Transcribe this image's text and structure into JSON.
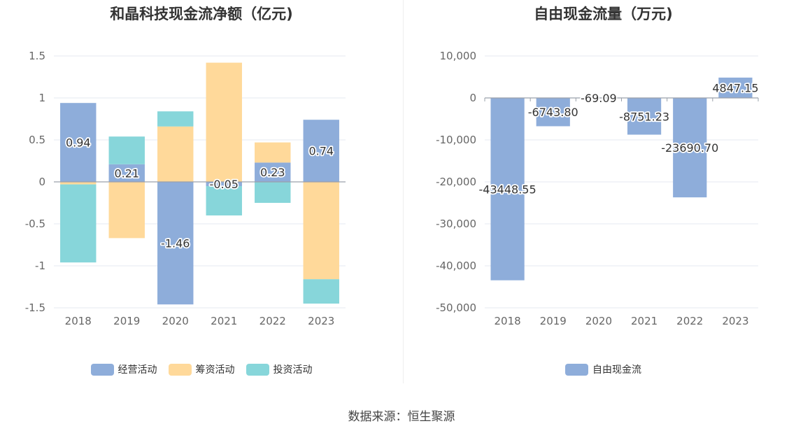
{
  "source": "数据来源：恒生聚源",
  "chart_data": [
    {
      "type": "bar",
      "stacked": true,
      "title": "和晶科技现金流净额（亿元)",
      "categories": [
        "2018",
        "2019",
        "2020",
        "2021",
        "2022",
        "2023"
      ],
      "ylim": [
        -1.5,
        1.5
      ],
      "yticks": [
        1.5,
        1,
        0.5,
        0,
        -0.5,
        -1,
        -1.5
      ],
      "ytick_labels": [
        "1.5",
        "1",
        "0.5",
        "0",
        "-0.5",
        "-1",
        "-1.5"
      ],
      "grid": true,
      "legend_position": "bottom",
      "series": [
        {
          "name": "经营活动",
          "color": "#8eadda",
          "values": [
            0.94,
            0.21,
            -1.46,
            -0.05,
            0.23,
            0.74
          ],
          "labels": [
            "0.94",
            "0.21",
            "-1.46",
            "-0.05",
            "0.23",
            "0.74"
          ]
        },
        {
          "name": "筹资活动",
          "color": "#ffd99a",
          "values": [
            -0.03,
            -0.67,
            0.66,
            1.42,
            0.24,
            -1.16
          ],
          "labels": []
        },
        {
          "name": "投资活动",
          "color": "#87d6da",
          "values": [
            -0.93,
            0.33,
            0.18,
            -0.35,
            -0.25,
            -0.29
          ],
          "labels": []
        }
      ]
    },
    {
      "type": "bar",
      "title": "自由现金流量（万元)",
      "categories": [
        "2018",
        "2019",
        "2020",
        "2021",
        "2022",
        "2023"
      ],
      "ylim": [
        -50000,
        10000
      ],
      "yticks": [
        10000,
        0,
        -10000,
        -20000,
        -30000,
        -40000,
        -50000
      ],
      "ytick_labels": [
        "10,000",
        "0",
        "-10,000",
        "-20,000",
        "-30,000",
        "-40,000",
        "-50,000"
      ],
      "grid": true,
      "legend_position": "bottom",
      "series": [
        {
          "name": "自由现金流",
          "color": "#8eadda",
          "values": [
            -43448.55,
            -6743.8,
            -69.09,
            -8751.23,
            -23690.7,
            4847.15
          ],
          "labels": [
            "-43448.55",
            "-6743.80",
            "-69.09",
            "-8751.23",
            "-23690.70",
            "4847.15"
          ]
        }
      ]
    }
  ]
}
